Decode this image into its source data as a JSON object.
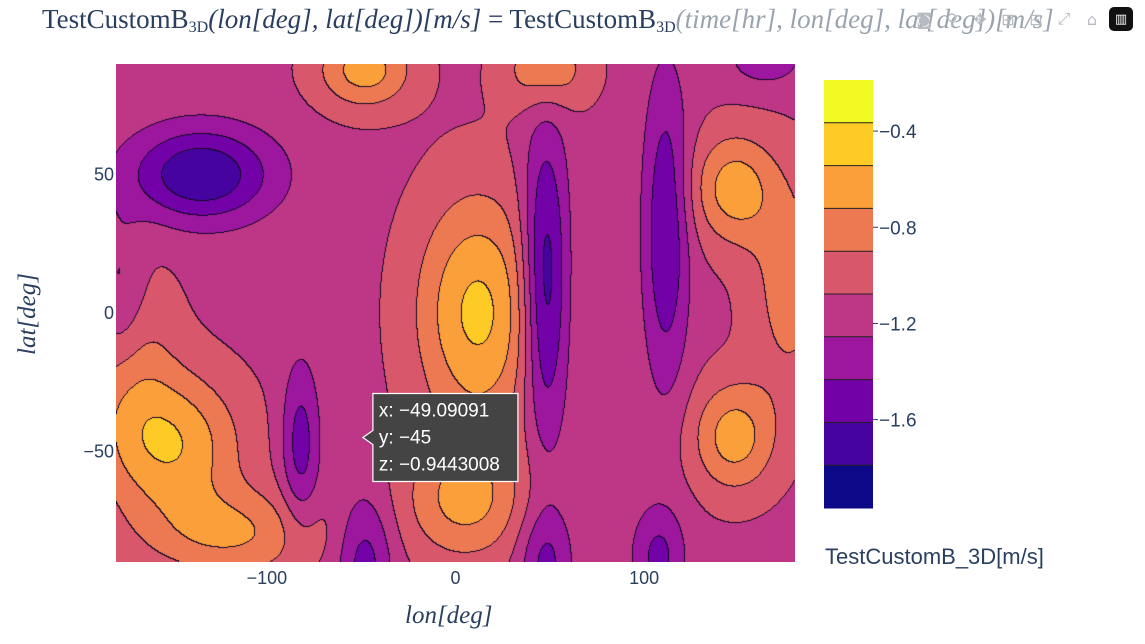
{
  "title": {
    "lhs_name": "TestCustomB",
    "lhs_sub": "3D",
    "lhs_args": "(lon[deg], lat[deg])[m/s]",
    "eq": " = ",
    "rhs_name": "TestCustomB",
    "rhs_sub": "3D",
    "rhs_args": "(time[hr], lon[deg], lat[deg])[m/s]"
  },
  "modebar": {
    "icons": [
      "camera-icon",
      "zoom-icon",
      "pan-icon",
      "zoom-in-icon",
      "zoom-out-icon",
      "autoscale-icon",
      "home-icon",
      "plotly-logo-icon"
    ]
  },
  "colors": {
    "scale": [
      "#0d0887",
      "#46039f",
      "#7201a8",
      "#9c179e",
      "#bd3786",
      "#d8576b",
      "#ed7953",
      "#fb9f3a",
      "#fdca26",
      "#f0f921"
    ],
    "axis_text": "#2a3f5f",
    "hover_bg": "#444444"
  },
  "chart_data": {
    "type": "contour",
    "xlabel": "lon[deg]",
    "ylabel": "lat[deg]",
    "xlim": [
      -180,
      180
    ],
    "ylim": [
      -90,
      90
    ],
    "xticks": [
      -100,
      0,
      100
    ],
    "xtick_labels": [
      "−100",
      "0",
      "100"
    ],
    "yticks": [
      -50,
      0,
      50
    ],
    "ytick_labels": [
      "−50",
      "0",
      "50"
    ],
    "colorbar": {
      "title": "TestCustomB_3D[m/s]",
      "range": [
        -1.8,
        -0.2
      ],
      "levels": [
        -1.8,
        -1.6,
        -1.4,
        -1.2,
        -1.0,
        -0.8,
        -0.6,
        -0.4,
        -0.2
      ],
      "tick_values": [
        -0.4,
        -0.8,
        -1.2,
        -1.6
      ],
      "tick_labels": [
        "−0.4",
        "−0.8",
        "−1.2",
        "−1.6"
      ]
    },
    "hover": {
      "x": -49.09091,
      "y": -45,
      "z": -0.9443008,
      "lines": [
        "x: −49.09091",
        "y: −45",
        "z: −0.9443008"
      ]
    }
  }
}
